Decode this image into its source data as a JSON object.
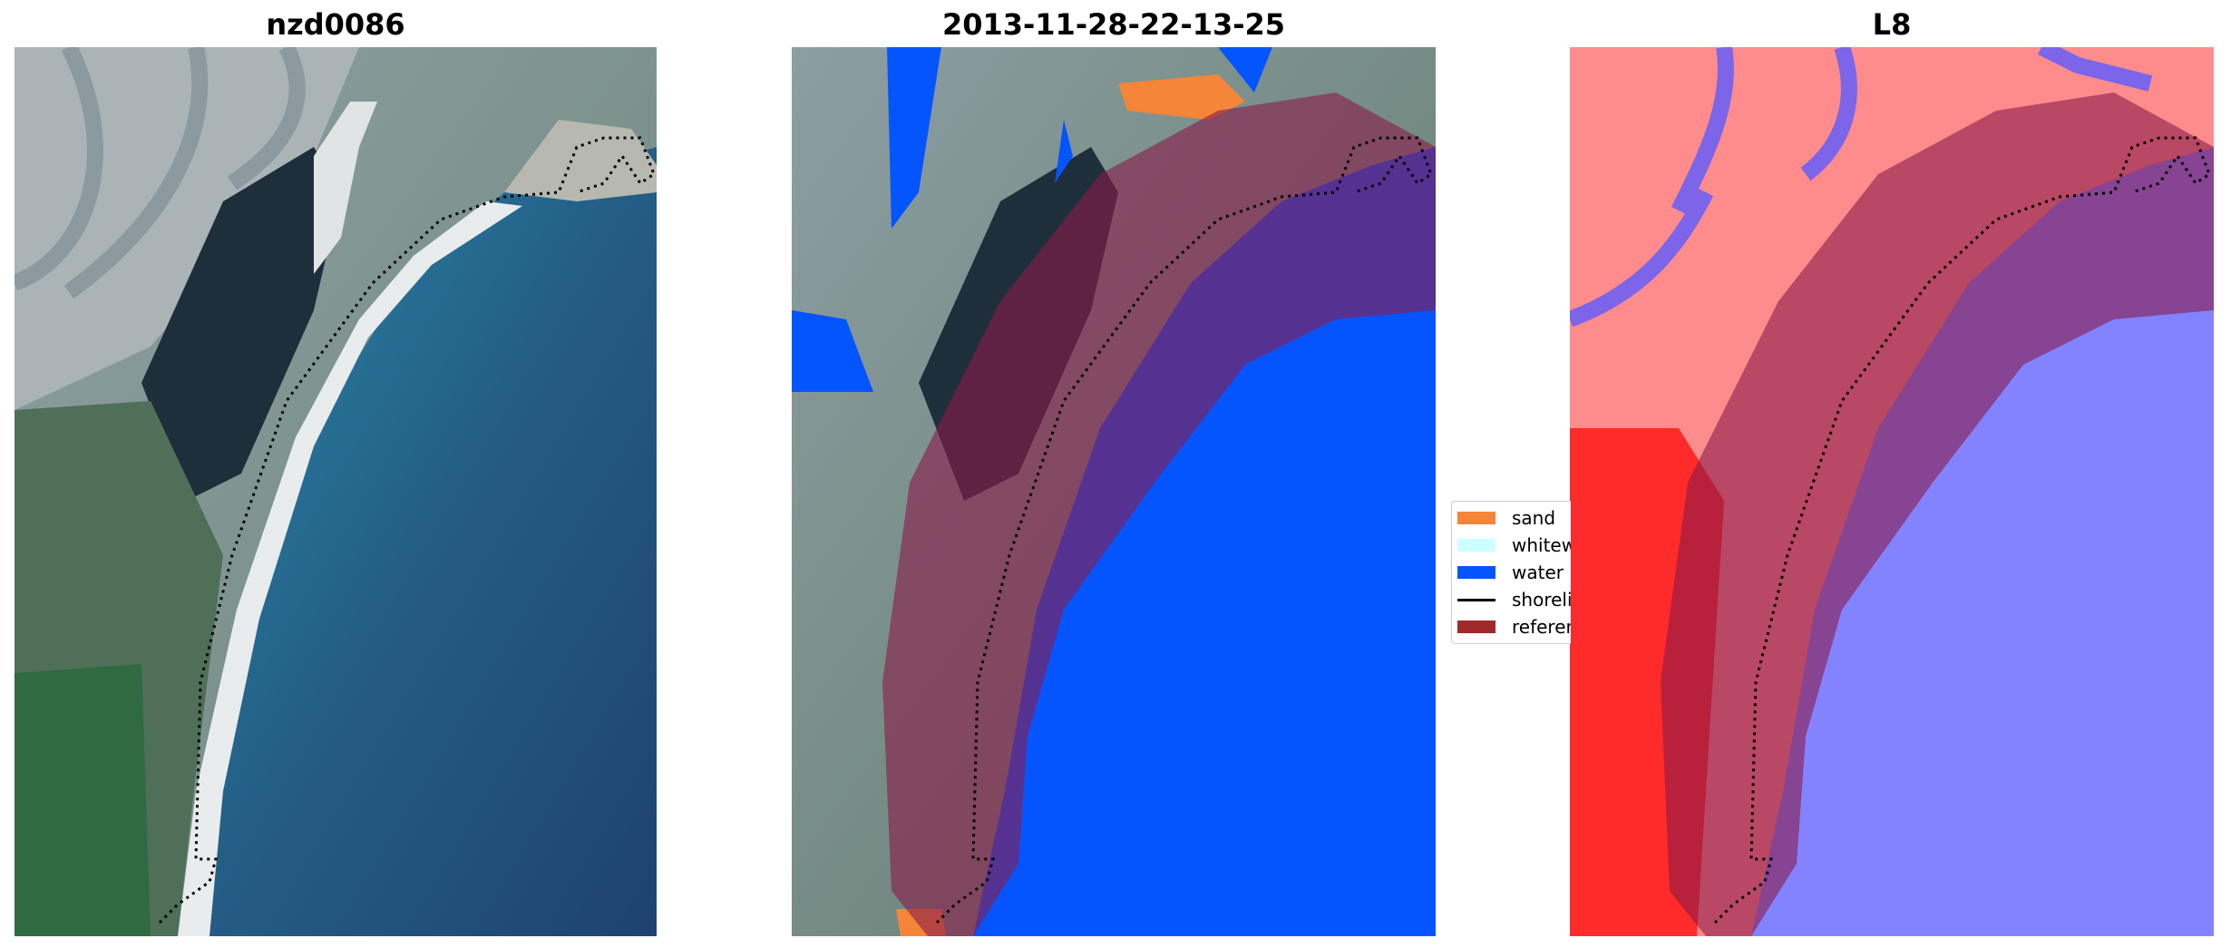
{
  "panels": [
    {
      "title": "nzd0086"
    },
    {
      "title": "2013-11-28-22-13-25"
    },
    {
      "title": "L8"
    }
  ],
  "legend": {
    "items": [
      {
        "label": "sand",
        "type": "patch",
        "color": "#f58538"
      },
      {
        "label": "whitewater",
        "type": "patch",
        "color": "#ccffff"
      },
      {
        "label": "water",
        "type": "patch",
        "color": "#0555ff"
      },
      {
        "label": "shoreline",
        "type": "line",
        "color": "#000000"
      },
      {
        "label": "reference",
        "type": "patch",
        "color": "#9e2a2a"
      }
    ]
  },
  "colors": {
    "sand_class": "#f58538",
    "water_class": "#0555ff",
    "buffer_overlay": "#8b1a4a",
    "ndwi_positive": "#ff3030",
    "ndwi_negative": "#6b6bff"
  }
}
